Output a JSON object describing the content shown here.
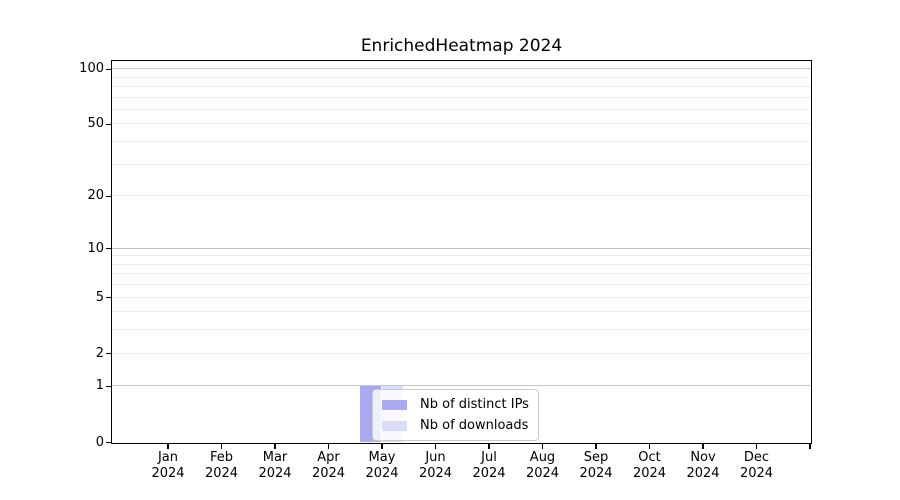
{
  "chart_data": {
    "type": "bar",
    "title": "EnrichedHeatmap 2024",
    "categories": [
      "Jan",
      "Feb",
      "Mar",
      "Apr",
      "May",
      "Jun",
      "Jul",
      "Aug",
      "Sep",
      "Oct",
      "Nov",
      "Dec"
    ],
    "category_year": "2024",
    "series": [
      {
        "name": "Nb of distinct IPs",
        "color": "#a9aaf0",
        "values": [
          0,
          0,
          0,
          0,
          1,
          0,
          0,
          0,
          0,
          0,
          0,
          0
        ]
      },
      {
        "name": "Nb of downloads",
        "color": "#dadcf8",
        "values": [
          0,
          0,
          0,
          0,
          1,
          0,
          0,
          0,
          0,
          0,
          0,
          0
        ]
      }
    ],
    "xlabel": "",
    "ylabel": "",
    "y_scale": "log1p",
    "ylim": [
      0,
      110
    ],
    "y_ticks": [
      0,
      1,
      2,
      5,
      10,
      20,
      50,
      100
    ],
    "y_major_gridlines": [
      1,
      10,
      100
    ],
    "y_minor_gridlines": [
      2,
      3,
      4,
      5,
      6,
      7,
      8,
      9,
      20,
      30,
      40,
      50,
      60,
      70,
      80,
      90
    ],
    "grid": true,
    "legend_position": "inside bottom, left of center"
  },
  "colors": {
    "major_grid": "#c6c6c6",
    "minor_grid": "#ececec",
    "spine": "#000000",
    "legend_border": "#c9c9c9",
    "background": "#ffffff"
  }
}
